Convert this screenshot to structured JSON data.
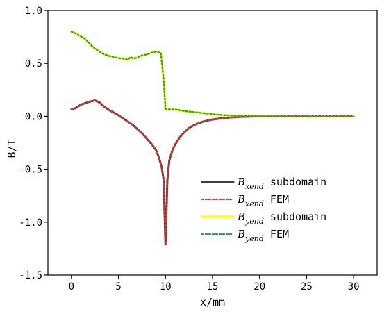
{
  "chart_data": {
    "type": "line",
    "title": "",
    "xlabel": "x/mm",
    "ylabel": "B/T",
    "xlim": [
      -2.5,
      32.5
    ],
    "ylim": [
      -1.5,
      1.0
    ],
    "xticks": [
      0,
      5,
      10,
      15,
      20,
      25,
      30
    ],
    "yticks": [
      -1.5,
      -1.0,
      -0.5,
      0.0,
      0.5,
      1.0
    ],
    "ytick_labels": [
      "-1.5",
      "-1.0",
      "-0.5",
      "0.0",
      "0.5",
      "1.0"
    ],
    "grid": false,
    "legend_position": "lower-right",
    "legend": [
      {
        "symbol": "B",
        "subscript": "xend",
        "text": " subdomain",
        "style": "solid",
        "color": "#404040"
      },
      {
        "symbol": "B",
        "subscript": "xend",
        "text": " FEM",
        "style": "dotted",
        "color": "#e8312f"
      },
      {
        "symbol": "B",
        "subscript": "yend",
        "text": " subdomain",
        "style": "solid",
        "color": "#ffff00"
      },
      {
        "symbol": "B",
        "subscript": "yend",
        "text": " FEM",
        "style": "dotted",
        "color": "#1ea24a"
      }
    ],
    "series": [
      {
        "name": "Bxend subdomain",
        "x": [
          0,
          0.5,
          1,
          1.5,
          2,
          2.5,
          3,
          3.5,
          4,
          4.5,
          5,
          5.5,
          6,
          6.5,
          7,
          7.5,
          8,
          8.5,
          9,
          9.3,
          9.6,
          9.8,
          10,
          10.2,
          10.4,
          10.7,
          11,
          11.5,
          12,
          12.5,
          13,
          13.5,
          14,
          15,
          16,
          17,
          18,
          19,
          20,
          22,
          24,
          26,
          28,
          30
        ],
        "y": [
          0.065,
          0.08,
          0.11,
          0.125,
          0.14,
          0.15,
          0.13,
          0.09,
          0.06,
          0.035,
          0.01,
          -0.02,
          -0.05,
          -0.08,
          -0.12,
          -0.16,
          -0.21,
          -0.26,
          -0.32,
          -0.39,
          -0.48,
          -0.6,
          -1.21,
          -0.6,
          -0.42,
          -0.33,
          -0.27,
          -0.2,
          -0.15,
          -0.11,
          -0.085,
          -0.065,
          -0.05,
          -0.03,
          -0.018,
          -0.01,
          -0.005,
          -0.002,
          0.0,
          0.002,
          0.003,
          0.004,
          0.004,
          0.004
        ]
      },
      {
        "name": "Bxend FEM",
        "x": [
          0,
          0.5,
          1,
          1.5,
          2,
          2.5,
          3,
          3.5,
          4,
          4.5,
          5,
          5.5,
          6,
          6.5,
          7,
          7.5,
          8,
          8.5,
          9,
          9.3,
          9.6,
          9.8,
          10,
          10.2,
          10.4,
          10.7,
          11,
          11.5,
          12,
          12.5,
          13,
          13.5,
          14,
          15,
          16,
          17,
          18,
          19,
          20,
          22,
          24,
          26,
          28,
          30
        ],
        "y": [
          0.065,
          0.08,
          0.11,
          0.125,
          0.14,
          0.15,
          0.13,
          0.09,
          0.06,
          0.035,
          0.01,
          -0.02,
          -0.05,
          -0.08,
          -0.12,
          -0.16,
          -0.21,
          -0.26,
          -0.32,
          -0.39,
          -0.48,
          -0.6,
          -1.21,
          -0.6,
          -0.42,
          -0.33,
          -0.27,
          -0.2,
          -0.15,
          -0.11,
          -0.085,
          -0.065,
          -0.05,
          -0.03,
          -0.018,
          -0.01,
          -0.005,
          -0.002,
          0.0,
          0.002,
          0.003,
          0.004,
          0.004,
          0.004
        ]
      },
      {
        "name": "Byend subdomain",
        "x": [
          0,
          0.5,
          1,
          1.5,
          2,
          2.5,
          3,
          3.5,
          4,
          4.5,
          5,
          5.5,
          6,
          6.3,
          6.6,
          7,
          7.5,
          8,
          8.5,
          9,
          9.5,
          9.8,
          10,
          10.5,
          11,
          12,
          13,
          14,
          15,
          16,
          17,
          18,
          19,
          20,
          22,
          24,
          26,
          28,
          30
        ],
        "y": [
          0.8,
          0.78,
          0.755,
          0.73,
          0.68,
          0.64,
          0.61,
          0.585,
          0.57,
          0.56,
          0.55,
          0.545,
          0.535,
          0.56,
          0.545,
          0.555,
          0.575,
          0.585,
          0.6,
          0.61,
          0.6,
          0.35,
          0.07,
          0.065,
          0.065,
          0.05,
          0.04,
          0.03,
          0.02,
          0.012,
          0.007,
          0.004,
          0.002,
          0.0,
          -0.001,
          -0.002,
          -0.002,
          -0.002,
          -0.002
        ]
      },
      {
        "name": "Byend FEM",
        "x": [
          0,
          0.5,
          1,
          1.5,
          2,
          2.5,
          3,
          3.5,
          4,
          4.5,
          5,
          5.5,
          6,
          6.3,
          6.6,
          7,
          7.5,
          8,
          8.5,
          9,
          9.5,
          9.8,
          10,
          10.5,
          11,
          12,
          13,
          14,
          15,
          16,
          17,
          18,
          19,
          20,
          22,
          24,
          26,
          28,
          30
        ],
        "y": [
          0.8,
          0.78,
          0.755,
          0.73,
          0.68,
          0.64,
          0.61,
          0.585,
          0.57,
          0.56,
          0.55,
          0.545,
          0.535,
          0.56,
          0.545,
          0.555,
          0.575,
          0.585,
          0.6,
          0.61,
          0.6,
          0.35,
          0.07,
          0.065,
          0.065,
          0.05,
          0.04,
          0.03,
          0.02,
          0.012,
          0.007,
          0.004,
          0.002,
          0.0,
          -0.001,
          -0.002,
          -0.002,
          -0.002,
          -0.002
        ]
      }
    ]
  }
}
